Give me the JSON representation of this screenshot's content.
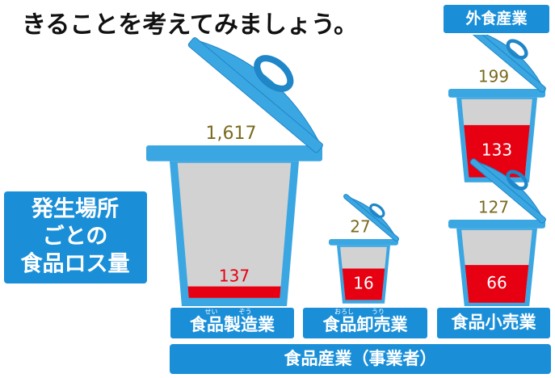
{
  "heading": "きることを考えてみましょう。",
  "side_label": [
    "発生場所",
    "ごとの",
    "食品ロス量"
  ],
  "bins": [
    {
      "label": "食品製造業",
      "ruby": [
        "せい",
        "ぞう"
      ],
      "total": 1617,
      "total_label": "1,617",
      "loss": 137
    },
    {
      "label": "食品卸売業",
      "ruby": [
        "おろし",
        "うり"
      ],
      "total": 27,
      "loss": 16
    },
    {
      "label": "外食産業",
      "total": 199,
      "loss": 133
    },
    {
      "label": "食品小売業",
      "total": 127,
      "loss": 66
    }
  ],
  "industry_label": "食品産業（事業者）"
}
